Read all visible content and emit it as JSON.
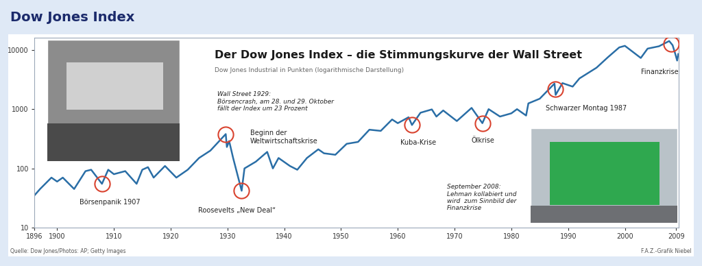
{
  "header": "Dow Jones Index",
  "source": "Quelle: Dow Jones/Photos: AP; Getty Images",
  "credit": "F.A.Z.-Grafik Niebel",
  "chart_data": {
    "type": "line",
    "title": "Der Dow Jones Index – die Stimmungskurve der Wall Street",
    "subtitle": "Dow Jones Industrial in Punkten (logarithmische Darstellung)",
    "log": "y",
    "color": "#2a6ea6",
    "x": [
      1896,
      1897,
      1899,
      1900,
      1901,
      1903,
      1905,
      1906,
      1907.9,
      1909,
      1910,
      1912,
      1914,
      1915,
      1916,
      1917,
      1919,
      1921,
      1923,
      1925,
      1927,
      1929.7,
      1929.9,
      1930.3,
      1931,
      1932.5,
      1933,
      1935,
      1937,
      1938,
      1939,
      1941,
      1942.3,
      1944,
      1946,
      1947,
      1949,
      1951,
      1953,
      1955,
      1957,
      1959,
      1960,
      1961.9,
      1962.5,
      1964,
      1966,
      1966.8,
      1968,
      1970.4,
      1973,
      1974.9,
      1976,
      1978,
      1980,
      1981,
      1982.6,
      1983,
      1985,
      1987.6,
      1987.8,
      1989,
      1990.8,
      1992,
      1995,
      1997,
      1999,
      2000,
      2002.8,
      2004,
      2006,
      2007.8,
      2008.4,
      2008.9,
      2009.2,
      2009.4
    ],
    "values": [
      35,
      45,
      70,
      60,
      70,
      45,
      90,
      95,
      55,
      95,
      80,
      90,
      55,
      95,
      105,
      70,
      110,
      70,
      95,
      150,
      200,
      380,
      230,
      290,
      150,
      42,
      100,
      130,
      190,
      100,
      150,
      110,
      95,
      150,
      210,
      180,
      170,
      260,
      280,
      450,
      430,
      670,
      580,
      730,
      540,
      870,
      990,
      750,
      950,
      630,
      1050,
      580,
      1000,
      750,
      850,
      1000,
      780,
      1250,
      1500,
      2700,
      1740,
      2750,
      2400,
      3300,
      5000,
      7500,
      11000,
      11700,
      7300,
      10500,
      11500,
      14100,
      12000,
      8400,
      6600,
      8500
    ],
    "xlim": [
      1896,
      2009.5
    ],
    "xticks": [
      1896,
      1900,
      1910,
      1920,
      1930,
      1940,
      1950,
      1960,
      1970,
      1980,
      1990,
      2000,
      2009
    ],
    "ylim": [
      10,
      16000
    ],
    "yticks": [
      10,
      100,
      1000,
      10000
    ],
    "annotations": [
      {
        "text": "Börsenpanik 1907",
        "x": 1907.9,
        "y": 55
      },
      {
        "text": "Beginn der\nWeltwirtschaftskrise",
        "x": 1929.7,
        "y": 380
      },
      {
        "text": "Roosevelts „New Deal“",
        "x": 1932.5,
        "y": 42
      },
      {
        "text": "Kuba-Krise",
        "x": 1962.5,
        "y": 540
      },
      {
        "text": "Ölkrise",
        "x": 1974.9,
        "y": 580
      },
      {
        "text": "Schwarzer Montag 1987",
        "x": 1987.7,
        "y": 2200
      },
      {
        "text": "Finanzkrise",
        "x": 2008.2,
        "y": 12500
      }
    ],
    "notes": [
      "Wall Street 1929:\nBörsencrash, am 28. und 29. Oktober\nfällt der Index um 23 Prozent",
      "September 2008:\nLehman kollabiert und\nwird  zum Sinnbild der\nFinanzkrise"
    ]
  }
}
